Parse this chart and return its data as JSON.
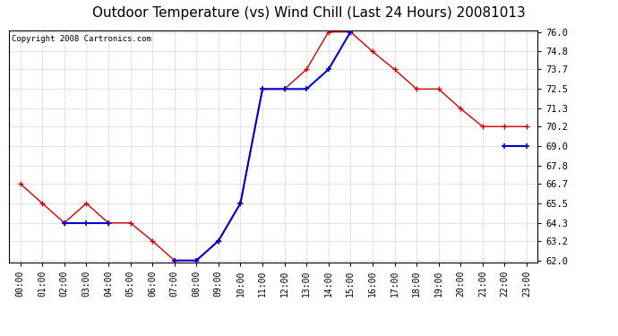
{
  "title": "Outdoor Temperature (vs) Wind Chill (Last 24 Hours) 20081013",
  "copyright_text": "Copyright 2008 Cartronics.com",
  "x_labels": [
    "00:00",
    "01:00",
    "02:00",
    "03:00",
    "04:00",
    "05:00",
    "06:00",
    "07:00",
    "08:00",
    "09:00",
    "10:00",
    "11:00",
    "12:00",
    "13:00",
    "14:00",
    "15:00",
    "16:00",
    "17:00",
    "18:00",
    "19:00",
    "20:00",
    "21:00",
    "22:00",
    "23:00"
  ],
  "outdoor_temp": [
    66.7,
    65.5,
    64.3,
    65.5,
    64.3,
    64.3,
    63.2,
    62.0,
    62.0,
    63.2,
    65.5,
    72.5,
    72.5,
    73.7,
    76.0,
    76.0,
    74.8,
    73.7,
    72.5,
    72.5,
    71.3,
    70.2,
    70.2,
    70.2
  ],
  "wind_chill": [
    null,
    null,
    64.3,
    64.3,
    64.3,
    null,
    null,
    62.0,
    62.0,
    63.2,
    65.5,
    72.5,
    72.5,
    72.5,
    73.7,
    76.0,
    null,
    null,
    null,
    null,
    null,
    null,
    69.0,
    69.0
  ],
  "ylim_min": 62.0,
  "ylim_max": 76.0,
  "y_ticks": [
    62.0,
    63.2,
    64.3,
    65.5,
    66.7,
    67.8,
    69.0,
    70.2,
    71.3,
    72.5,
    73.7,
    74.8,
    76.0
  ],
  "outdoor_color": "#cc0000",
  "wind_chill_color": "#0000cc",
  "background_color": "#ffffff",
  "grid_color": "#c8c8c8",
  "title_fontsize": 11,
  "copyright_fontsize": 6.5,
  "tick_fontsize": 7,
  "ytick_fontsize": 7.5
}
